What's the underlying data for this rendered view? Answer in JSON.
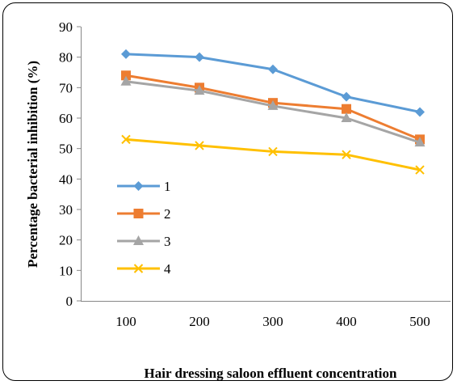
{
  "chart_data": {
    "type": "line",
    "xlabel": "Hair dressing saloon effluent concentration",
    "ylabel": "Percentage bacterial inhibition (%)",
    "categories": [
      "100",
      "200",
      "300",
      "400",
      "500"
    ],
    "ylim": [
      0,
      90
    ],
    "yticks": [
      "0",
      "10",
      "20",
      "30",
      "40",
      "50",
      "60",
      "70",
      "80",
      "90"
    ],
    "grid": false,
    "legend_position": "left",
    "series": [
      {
        "name": "1",
        "values": [
          81,
          80,
          76,
          67,
          62
        ],
        "color": "#5B9BD5",
        "marker": "diamond"
      },
      {
        "name": "2",
        "values": [
          74,
          70,
          65,
          63,
          53
        ],
        "color": "#ED7D31",
        "marker": "square"
      },
      {
        "name": "3",
        "values": [
          72,
          69,
          64,
          60,
          52
        ],
        "color": "#A5A5A5",
        "marker": "triangle"
      },
      {
        "name": "4",
        "values": [
          53,
          51,
          49,
          48,
          43
        ],
        "color": "#FFC000",
        "marker": "x"
      }
    ]
  }
}
